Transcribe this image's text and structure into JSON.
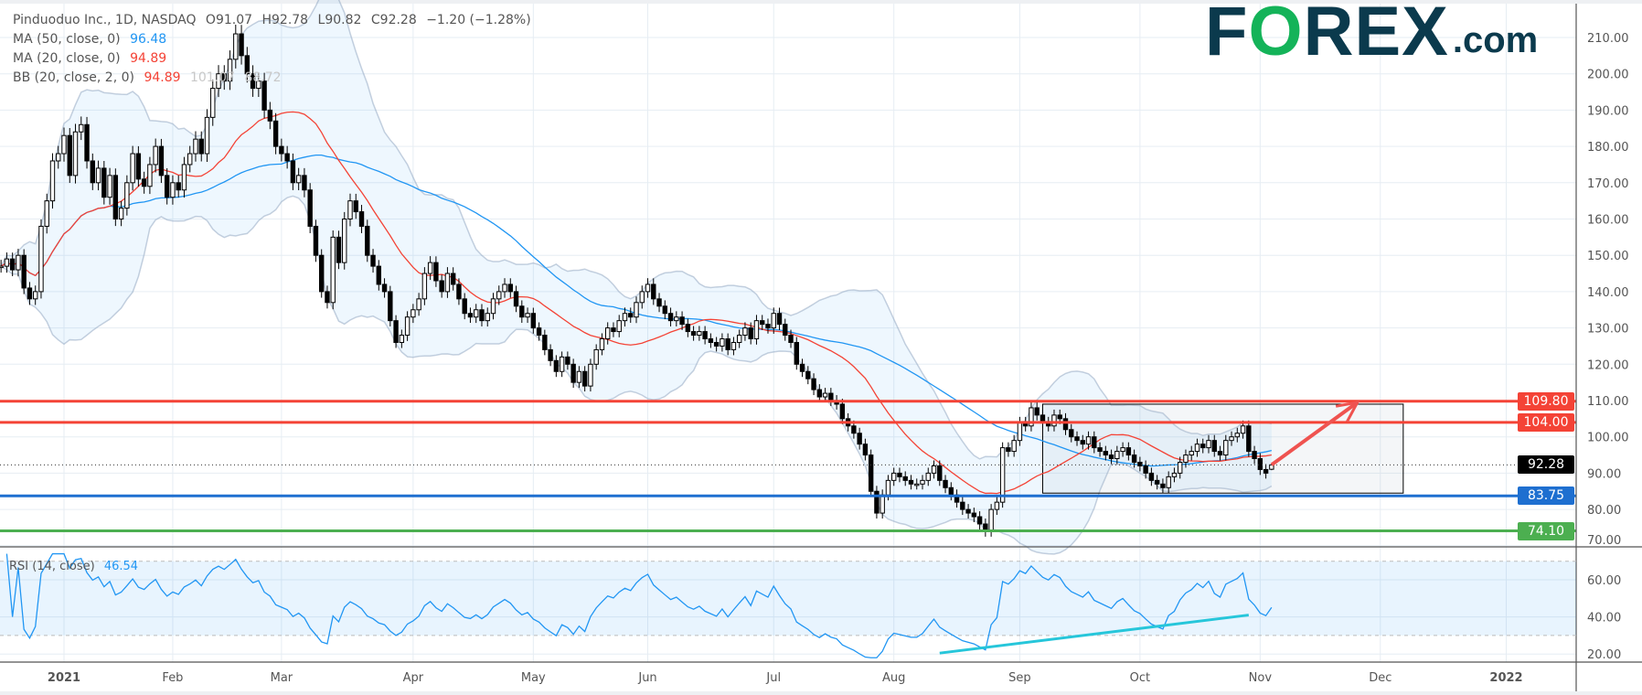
{
  "header": {
    "symbol": "Pinduoduo Inc., 1D, NASDAQ",
    "open": "O91.07",
    "high": "H92.78",
    "low": "L90.82",
    "close": "C92.28",
    "change": "−1.20 (−1.28%)",
    "ma50_label": "MA (50, close, 0)",
    "ma50_value": "96.48",
    "ma20_label": "MA (20, close, 0)",
    "ma20_value": "94.89",
    "bb_label": "BB (20, close, 2, 0)",
    "bb_basis": "94.89",
    "bb_upper": "101.07",
    "bb_lower": "88.72"
  },
  "logo": {
    "text_f": "F",
    "text_o": "O",
    "text_rex": "REX",
    "text_com": ".com"
  },
  "colors": {
    "ma50": "#2196f3",
    "ma20": "#f44336",
    "resistance": "#f44336",
    "support": "#1e6fd0",
    "low": "#4caf50",
    "rsi": "#2196f3",
    "rsi_trend": "#26c6da",
    "arrow": "#ef5350"
  },
  "rsi": {
    "label": "RSI (14, close)",
    "value": "46.54"
  },
  "price_badges": [
    {
      "label": "109.80",
      "price": 109.8,
      "color": "#f44336"
    },
    {
      "label": "104.00",
      "price": 104.0,
      "color": "#f44336"
    },
    {
      "label": "92.28",
      "price": 92.28,
      "color": "#000000"
    },
    {
      "label": "83.75",
      "price": 83.75,
      "color": "#1e6fd0"
    },
    {
      "label": "74.10",
      "price": 74.1,
      "color": "#4caf50"
    }
  ],
  "chart_data": {
    "type": "candlestick",
    "title": "Pinduoduo Inc., 1D, NASDAQ",
    "ylim": [
      70,
      210
    ],
    "y_ticks": [
      "70.00",
      "80.00",
      "90.00",
      "100.00",
      "110.00",
      "120.00",
      "130.00",
      "140.00",
      "150.00",
      "160.00",
      "170.00",
      "180.00",
      "190.00",
      "200.00",
      "210.00"
    ],
    "x_ticks": [
      {
        "label": "2021",
        "bar": 11,
        "bold": true
      },
      {
        "label": "Feb",
        "bar": 30
      },
      {
        "label": "Mar",
        "bar": 49
      },
      {
        "label": "Apr",
        "bar": 72
      },
      {
        "label": "May",
        "bar": 93
      },
      {
        "label": "Jun",
        "bar": 113
      },
      {
        "label": "Jul",
        "bar": 135
      },
      {
        "label": "Aug",
        "bar": 156
      },
      {
        "label": "Sep",
        "bar": 178
      },
      {
        "label": "Oct",
        "bar": 199
      },
      {
        "label": "Nov",
        "bar": 220
      },
      {
        "label": "Dec",
        "bar": 241
      },
      {
        "label": "2022",
        "bar": 263,
        "bold": true
      }
    ],
    "last_bar": {
      "open": 91.07,
      "high": 92.78,
      "low": 90.82,
      "close": 92.28
    },
    "close": [
      147,
      149,
      146,
      150,
      141,
      138,
      140,
      158,
      165,
      176,
      178,
      183,
      172,
      184,
      186,
      176,
      170,
      174,
      166,
      172,
      160,
      163,
      170,
      178,
      171,
      169,
      175,
      180,
      172,
      166,
      170,
      168,
      175,
      178,
      182,
      178,
      188,
      196,
      200,
      198,
      204,
      211,
      205,
      200,
      196,
      198,
      190,
      187,
      180,
      178,
      176,
      170,
      172,
      168,
      158,
      150,
      140,
      137,
      155,
      148,
      160,
      165,
      162,
      158,
      150,
      147,
      142,
      140,
      132,
      126,
      128,
      133,
      135,
      138,
      145,
      148,
      143,
      140,
      145,
      142,
      138,
      134,
      133,
      135,
      132,
      134,
      138,
      140,
      142,
      140,
      136,
      133,
      134,
      130,
      128,
      124,
      121,
      118,
      122,
      120,
      115,
      118,
      114,
      120,
      124,
      127,
      130,
      129,
      132,
      134,
      133,
      137,
      140,
      142,
      138,
      136,
      134,
      132,
      133,
      131,
      129,
      128,
      129,
      127,
      126,
      125,
      127,
      124,
      126,
      128,
      130,
      127,
      132,
      131,
      130,
      134,
      131,
      128,
      126,
      120,
      118,
      116,
      113,
      111,
      112,
      110,
      109,
      105,
      103,
      101,
      98,
      95,
      85,
      79,
      84,
      88,
      90,
      89,
      88,
      87,
      87,
      88,
      90,
      92,
      88,
      86,
      84,
      82,
      80,
      79,
      78,
      76,
      74,
      80,
      82,
      97,
      96,
      99,
      104,
      103,
      108,
      106,
      104,
      103,
      106,
      105,
      102,
      100,
      99,
      98,
      100,
      97,
      96,
      95,
      94,
      96,
      97,
      95,
      93,
      92,
      90,
      88,
      87,
      86,
      89,
      90,
      93,
      95,
      96,
      98,
      97,
      99,
      96,
      95,
      99,
      100,
      101,
      103,
      96,
      94,
      91,
      90,
      92.28
    ],
    "series": [
      {
        "name": "MA (50, close, 0)",
        "last": 96.48
      },
      {
        "name": "MA (20, close, 0)",
        "last": 94.89
      },
      {
        "name": "BB (20, close, 2, 0)",
        "basis": 94.89,
        "upper": 101.07,
        "lower": 88.72
      }
    ],
    "horizontal_levels": [
      109.8,
      104.0,
      83.75,
      74.1
    ],
    "range_box": {
      "from_bar": 182,
      "to_bar": 245,
      "top": 109.0,
      "bottom": 84.5
    },
    "projection_arrow": {
      "from_bar": 222,
      "from_price": 92.3,
      "to_bar": 237,
      "to_price": 109.5
    },
    "rsi_panel": {
      "ylim": [
        15,
        75
      ],
      "y_ticks": [
        "20.00",
        "40.00",
        "60.00"
      ],
      "bands": [
        30,
        70
      ],
      "trendline": {
        "from_bar": 164,
        "from_value": 20.5,
        "to_bar": 218,
        "to_value": 41
      }
    }
  }
}
